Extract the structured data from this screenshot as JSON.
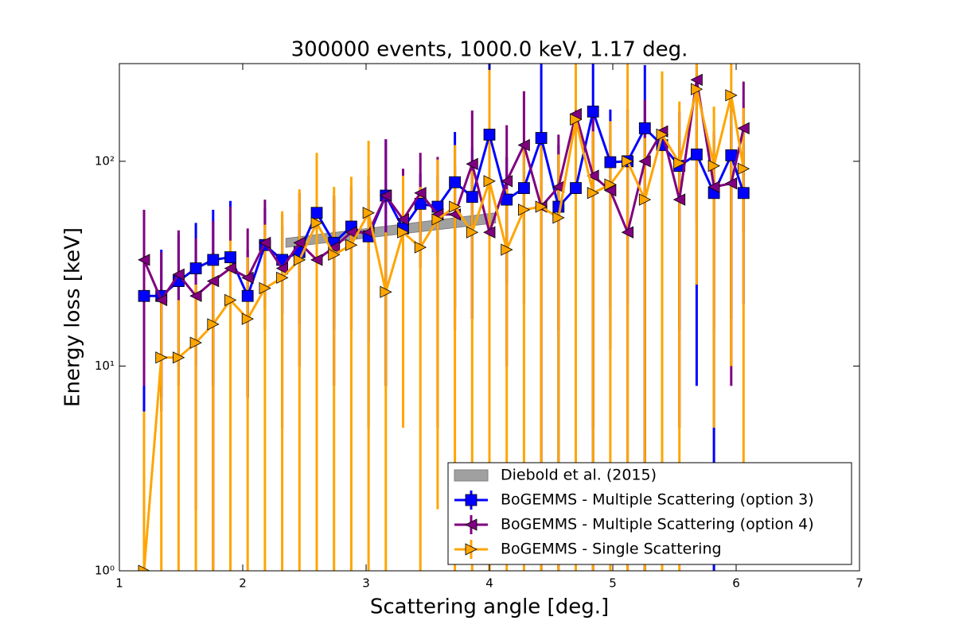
{
  "chart_data": {
    "type": "errorbar_line",
    "title": "300000 events, 1000.0 keV, 1.17 deg.",
    "x_label": "Scattering angle [deg.]",
    "y_label": "Energy loss [keV]",
    "xlim": [
      1,
      7
    ],
    "xticks": [
      1,
      2,
      3,
      4,
      5,
      6,
      7
    ],
    "ylim": [
      1,
      300
    ],
    "y_scale": "log",
    "yticks": [
      {
        "value": 1,
        "label": "10⁰"
      },
      {
        "value": 10,
        "label": "10¹"
      },
      {
        "value": 100,
        "label": "10²"
      }
    ],
    "legend": "lower right",
    "band": {
      "name": "Diebold et al. (2015)",
      "color": "#a0a0a0",
      "x": [
        2.35,
        4.05
      ],
      "lower": [
        38,
        50
      ],
      "upper": [
        42,
        56
      ]
    },
    "x": [
      1.2,
      1.34,
      1.48,
      1.62,
      1.76,
      1.9,
      2.04,
      2.18,
      2.32,
      2.46,
      2.6,
      2.74,
      2.88,
      3.02,
      3.16,
      3.3,
      3.44,
      3.58,
      3.72,
      3.86,
      4.0,
      4.14,
      4.28,
      4.42,
      4.56,
      4.7,
      4.84,
      4.98,
      5.12,
      5.26,
      5.4,
      5.54,
      5.68,
      5.82,
      5.96,
      6.06
    ],
    "series": [
      {
        "name": "BoGEMMS - Multiple Scattering (option 3)",
        "color": "#0000ff",
        "marker": "square",
        "values": [
          22,
          22,
          26,
          30,
          33,
          34,
          22,
          39,
          33,
          36,
          56,
          40,
          48,
          43,
          68,
          47,
          62,
          60,
          79,
          67,
          135,
          65,
          74,
          130,
          60,
          74,
          175,
          99,
          100,
          145,
          120,
          95,
          108,
          70,
          107,
          70
        ],
        "errors": [
          20,
          15,
          18,
          20,
          25,
          30,
          15,
          20,
          15,
          20,
          35,
          25,
          20,
          30,
          60,
          35,
          25,
          25,
          60,
          50,
          300,
          40,
          40,
          200,
          60,
          50,
          300,
          80,
          80,
          150,
          80,
          80,
          100,
          70,
          90,
          50
        ]
      },
      {
        "name": "BoGEMMS - Multiple Scattering (option 4)",
        "color": "#800080",
        "marker": "triangle-left",
        "values": [
          33,
          21,
          28,
          22,
          26,
          30,
          27,
          40,
          30,
          40,
          33,
          38,
          45,
          45,
          68,
          52,
          70,
          55,
          55,
          97,
          45,
          80,
          120,
          60,
          75,
          170,
          85,
          72,
          45,
          100,
          140,
          65,
          250,
          75,
          78,
          145
        ],
        "errors": [
          25,
          15,
          18,
          20,
          25,
          30,
          20,
          25,
          25,
          30,
          20,
          30,
          30,
          40,
          60,
          40,
          40,
          50,
          40,
          80,
          60,
          70,
          100,
          60,
          60,
          150,
          80,
          60,
          60,
          100,
          120,
          60,
          200,
          60,
          70,
          100
        ]
      },
      {
        "name": "BoGEMMS - Single Scattering",
        "color": "#ffa500",
        "marker": "triangle-right",
        "values": [
          1,
          11,
          11,
          13,
          16,
          21,
          17,
          24,
          27,
          33,
          50,
          35,
          39,
          56,
          23,
          45,
          38,
          52,
          60,
          45,
          80,
          37,
          58,
          60,
          53,
          160,
          70,
          77,
          100,
          65,
          135,
          98,
          225,
          95,
          210,
          92
        ],
        "errors": [
          5,
          10,
          10,
          12,
          15,
          20,
          17,
          25,
          30,
          40,
          60,
          40,
          45,
          70,
          22,
          40,
          37,
          50,
          60,
          45,
          200,
          36,
          60,
          60,
          55,
          160,
          70,
          80,
          200,
          65,
          140,
          98,
          200,
          90,
          200,
          90
        ]
      }
    ]
  }
}
